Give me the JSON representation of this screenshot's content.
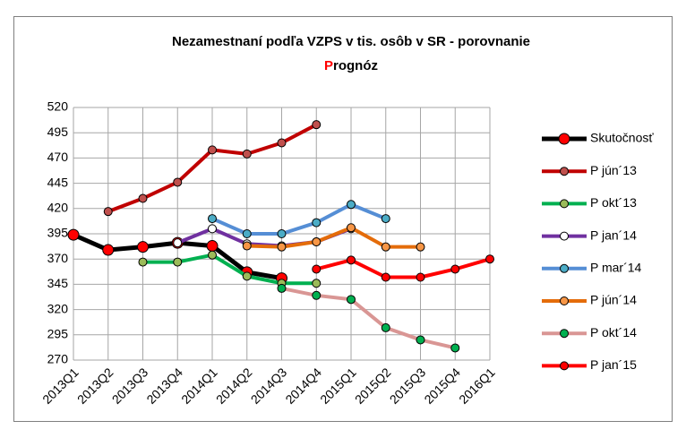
{
  "chart_data": {
    "type": "line",
    "title": [
      "Nezamestnaní  podľa VZPS v tis. osôb v SR - porovnanie",
      "P",
      "rognóz"
    ],
    "categories": [
      "2013Q1",
      "2013Q2",
      "2013Q3",
      "2013Q4",
      "2014Q1",
      "2014Q2",
      "2014Q3",
      "2014Q4",
      "2015Q1",
      "2015Q2",
      "2015Q3",
      "2015Q4",
      "2016Q1"
    ],
    "ylim": [
      270,
      520
    ],
    "yticks": [
      270,
      295,
      320,
      345,
      370,
      395,
      420,
      445,
      470,
      495,
      520
    ],
    "grid": true,
    "legend": "right",
    "series": [
      {
        "name": "Skutočnosť",
        "color": "#000000",
        "marker": "#ff0000",
        "values": [
          394,
          379,
          382,
          386,
          383,
          357,
          351,
          null,
          null,
          null,
          null,
          null,
          null
        ]
      },
      {
        "name": "P jún´13",
        "color": "#c00000",
        "marker": "#c0504d",
        "values": [
          null,
          417,
          430,
          446,
          478,
          474,
          485,
          503,
          null,
          null,
          null,
          null,
          null
        ]
      },
      {
        "name": "P okt´13",
        "color": "#00b050",
        "marker": "#9bbb59",
        "values": [
          null,
          null,
          367,
          367,
          374,
          353,
          346,
          346,
          null,
          null,
          null,
          null,
          null
        ]
      },
      {
        "name": "P jan´14",
        "color": "#7030a0",
        "marker": "#ffffff",
        "values": [
          null,
          null,
          null,
          386,
          400,
          385,
          383,
          387,
          400,
          null,
          null,
          null,
          null
        ]
      },
      {
        "name": "P mar´14",
        "color": "#558ed5",
        "marker": "#4bacc6",
        "values": [
          null,
          null,
          null,
          null,
          410,
          395,
          395,
          406,
          424,
          410,
          null,
          null,
          null
        ]
      },
      {
        "name": "P jún´14",
        "color": "#e46c0a",
        "marker": "#f79646",
        "values": [
          null,
          null,
          null,
          null,
          null,
          383,
          382,
          387,
          401,
          382,
          382,
          null,
          null
        ]
      },
      {
        "name": "P okt´14",
        "color": "#d99694",
        "marker": "#00b050",
        "values": [
          null,
          null,
          null,
          null,
          null,
          null,
          341,
          334,
          330,
          302,
          290,
          282,
          null
        ]
      },
      {
        "name": "P jan´15",
        "color": "#ff0000",
        "marker": "#ff0000",
        "values": [
          null,
          null,
          null,
          null,
          null,
          null,
          null,
          360,
          369,
          352,
          352,
          360,
          370
        ]
      }
    ]
  }
}
